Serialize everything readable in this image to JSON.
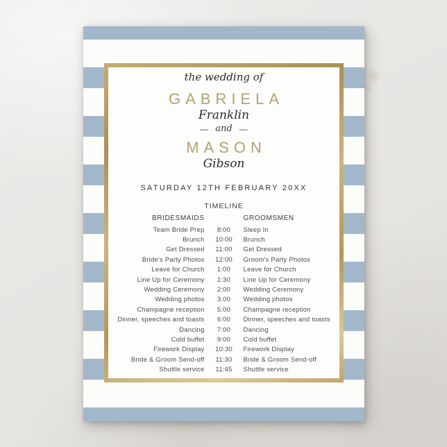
{
  "colors": {
    "stripe_blue": "#a2b7ca",
    "gold_frame": "#b59c64",
    "gold_name_text": "#b1a272",
    "card_white": "#fcfcfb",
    "background_gray": "#e7e5e2"
  },
  "card": {
    "intro": "the wedding of",
    "bride": {
      "first": "GABRIELA",
      "last": "Franklin"
    },
    "divider": {
      "dash": "—",
      "word": "and"
    },
    "groom": {
      "first": "MASON",
      "last": "Gibson"
    },
    "date": "SATURDAY 12TH FEBRUARY 20XX",
    "timeline": {
      "title": "TIMELINE",
      "left_header": "BRIDESMAIDS",
      "right_header": "GROOMSMEN",
      "rows": [
        {
          "left": "Team Bride Prep",
          "time": "8:00",
          "right": "Sleep In"
        },
        {
          "left": "Brunch",
          "time": "10:00",
          "right": "Brunch"
        },
        {
          "left": "Get Dressed",
          "time": "11:00",
          "right": "Get Dressed"
        },
        {
          "left": "Bride's Party Photos",
          "time": "12:00",
          "right": "Groom's Party Photos"
        },
        {
          "left": "Leave for Church",
          "time": "1:00",
          "right": "Leave for Church"
        },
        {
          "left": "Line Up for Ceremony",
          "time": "1:30",
          "right": "Line Up for Ceremony"
        },
        {
          "left": "Wedding Ceremony",
          "time": "2:00",
          "right": "Wedding Ceremony"
        },
        {
          "left": "Wedding photos",
          "time": "3.00",
          "right": "Wedding photos"
        },
        {
          "left": "Champagne reception",
          "time": "5:00",
          "right": "Champagne reception"
        },
        {
          "left": "Dinner, speeches and toasts",
          "time": "6:00",
          "right": "Dinner, speeches and toasts"
        },
        {
          "left": "Dancing",
          "time": "7:00",
          "right": "Dancing"
        },
        {
          "left": "Cold buffet",
          "time": "9:00",
          "right": "Cold buffet"
        },
        {
          "left": "Firework Display",
          "time": "10:30",
          "right": "Firework Display"
        },
        {
          "left": "Bride & Groom Send-off",
          "time": "11:30",
          "right": "Bride & Groom Send-off"
        },
        {
          "left": "Shuttle service",
          "time": "11:45",
          "right": "Shuttle service"
        }
      ]
    }
  }
}
